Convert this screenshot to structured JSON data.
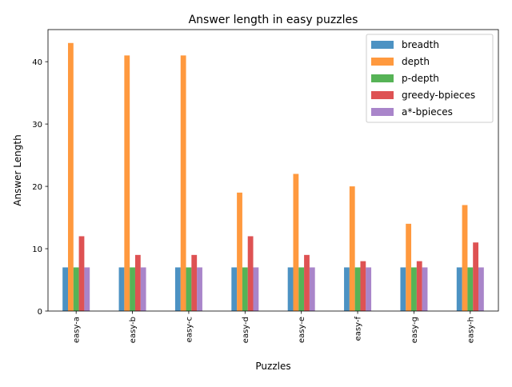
{
  "chart_data": {
    "type": "bar",
    "title": "Answer length in easy puzzles",
    "xlabel": "Puzzles",
    "ylabel": "Answer Length",
    "categories": [
      "easy-a",
      "easy-b",
      "easy-c",
      "easy-d",
      "easy-e",
      "easy-f",
      "easy-g",
      "easy-h"
    ],
    "series": [
      {
        "name": "breadth",
        "color": "#1f77b4",
        "values": [
          7,
          7,
          7,
          7,
          7,
          7,
          7,
          7
        ]
      },
      {
        "name": "depth",
        "color": "#ff7f0e",
        "values": [
          43,
          41,
          41,
          19,
          22,
          20,
          14,
          17
        ]
      },
      {
        "name": "p-depth",
        "color": "#2ca02c",
        "values": [
          7,
          7,
          7,
          7,
          7,
          7,
          7,
          7
        ]
      },
      {
        "name": "greedy-bpieces",
        "color": "#d62728",
        "values": [
          12,
          9,
          9,
          12,
          9,
          8,
          8,
          11
        ]
      },
      {
        "name": "a*-bpieces",
        "color": "#9467bd",
        "values": [
          7,
          7,
          7,
          7,
          7,
          7,
          7,
          7
        ]
      }
    ],
    "ylim": [
      0,
      45.15
    ],
    "yticks": [
      0,
      10,
      20,
      30,
      40
    ],
    "bar_opacity": 0.8,
    "grid": false,
    "legend_position": "top-right"
  }
}
